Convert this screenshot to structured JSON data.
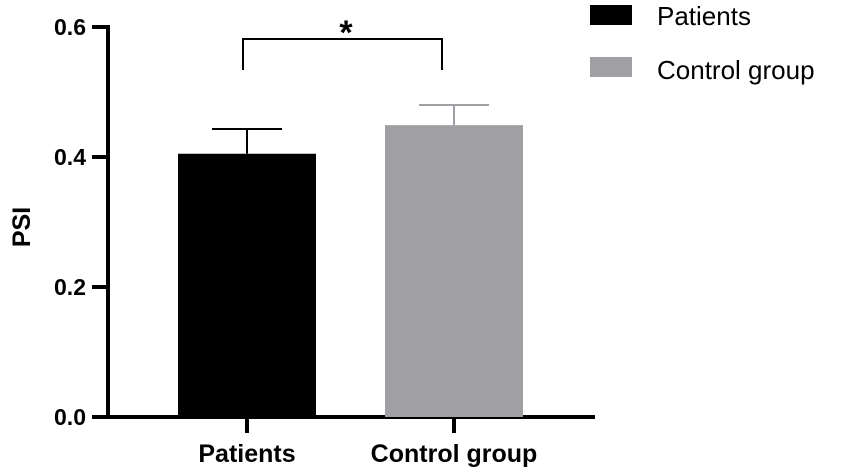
{
  "chart_data": {
    "type": "bar",
    "title": "",
    "xlabel": "",
    "ylabel": "PSI",
    "ylim": [
      0,
      0.6
    ],
    "yticks": [
      "0.0",
      "0.2",
      "0.4",
      "0.6"
    ],
    "categories": [
      "Patients",
      "Control group"
    ],
    "values": [
      0.405,
      0.449
    ],
    "error_bars_upper": [
      0.443,
      0.48
    ],
    "colors": [
      "#000000",
      "#a0a0a4"
    ],
    "grid": false,
    "legend": {
      "position": "upper right",
      "entries": [
        {
          "label": "Patients",
          "color": "#000000"
        },
        {
          "label": "Control group",
          "color": "#a0a0a4"
        }
      ]
    },
    "annotations": [
      {
        "type": "significance-bracket",
        "between": [
          "Patients",
          "Control group"
        ],
        "label": "*"
      }
    ]
  }
}
